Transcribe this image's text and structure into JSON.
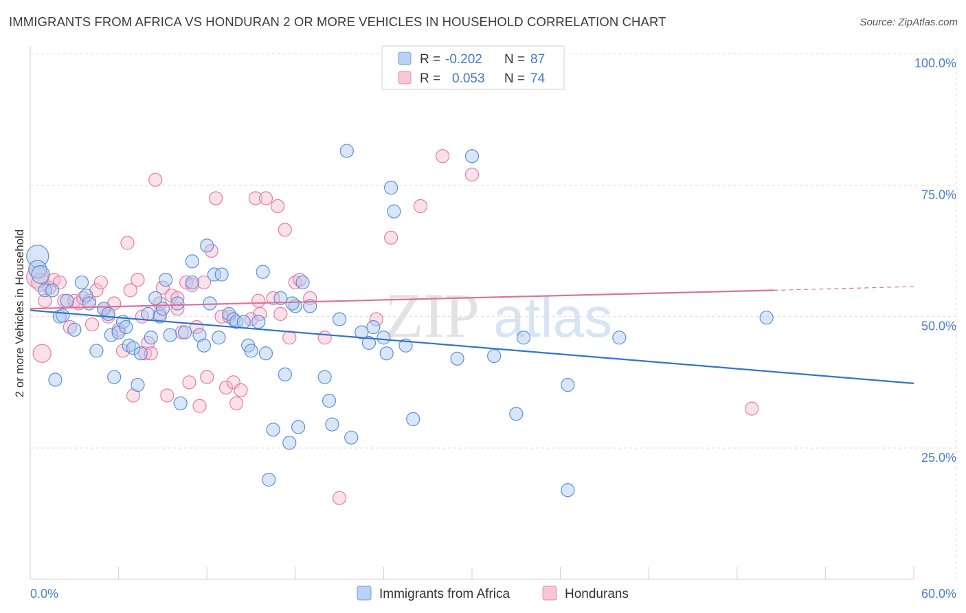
{
  "title": "IMMIGRANTS FROM AFRICA VS HONDURAN 2 OR MORE VEHICLES IN HOUSEHOLD CORRELATION CHART",
  "source": "Source: ZipAtlas.com",
  "watermark": {
    "zip": "ZIP",
    "atlas": "atlas"
  },
  "colors": {
    "blue": "#5b8fd9",
    "blue_fill": "#aac8f0",
    "blue_line": "#2f74d0",
    "pink": "#e87aa0",
    "pink_fill": "#f5bcd0",
    "pink_line": "#e0709a",
    "axis_text_blue": "#4a7fc9"
  },
  "stats": [
    {
      "r_label": "R =",
      "r_value": "-0.202",
      "n_label": "N =",
      "n_value": "87"
    },
    {
      "r_label": "R =",
      "r_value": "0.053",
      "n_label": "N =",
      "n_value": "74"
    }
  ],
  "chart_data": {
    "type": "scatter",
    "title": "IMMIGRANTS FROM AFRICA VS HONDURAN 2 OR MORE VEHICLES IN HOUSEHOLD CORRELATION CHART",
    "xlabel": "",
    "ylabel": "2 or more Vehicles in Household",
    "xlim": [
      0,
      60
    ],
    "ylim": [
      0,
      105
    ],
    "x_tick_labels": [
      "0.0%",
      "60.0%"
    ],
    "y_ticks": [
      25,
      50,
      75,
      100
    ],
    "y_tick_labels": [
      "25.0%",
      "50.0%",
      "75.0%",
      "100.0%"
    ],
    "grid": true,
    "legend_position": "bottom",
    "series": [
      {
        "name": "Immigrants from Africa",
        "trend": {
          "x": [
            0,
            60
          ],
          "y": [
            51.2,
            37.3
          ],
          "dashed_after": null
        },
        "points": [
          [
            0.5,
            61.5
          ],
          [
            0.5,
            59.0
          ],
          [
            0.7,
            58.0
          ],
          [
            1.0,
            55.0
          ],
          [
            1.5,
            55.0
          ],
          [
            1.7,
            38.0
          ],
          [
            2.0,
            50.0
          ],
          [
            2.2,
            50.2
          ],
          [
            2.5,
            53.0
          ],
          [
            3.0,
            47.5
          ],
          [
            3.5,
            56.5
          ],
          [
            3.8,
            54.0
          ],
          [
            4.0,
            52.5
          ],
          [
            4.5,
            43.5
          ],
          [
            5.0,
            51.5
          ],
          [
            5.3,
            50.5
          ],
          [
            5.5,
            46.5
          ],
          [
            5.7,
            38.5
          ],
          [
            6.0,
            47.0
          ],
          [
            6.3,
            49.0
          ],
          [
            6.5,
            48.0
          ],
          [
            6.7,
            44.5
          ],
          [
            7.0,
            44.0
          ],
          [
            7.3,
            37.0
          ],
          [
            7.5,
            43.0
          ],
          [
            8.0,
            50.5
          ],
          [
            8.2,
            46.0
          ],
          [
            8.5,
            53.5
          ],
          [
            8.8,
            50.0
          ],
          [
            9.0,
            51.5
          ],
          [
            9.2,
            57.0
          ],
          [
            9.5,
            46.5
          ],
          [
            10.0,
            52.5
          ],
          [
            10.2,
            33.5
          ],
          [
            10.5,
            47.0
          ],
          [
            11.0,
            56.5
          ],
          [
            11.0,
            60.5
          ],
          [
            11.5,
            46.5
          ],
          [
            11.8,
            44.5
          ],
          [
            12.0,
            63.5
          ],
          [
            12.2,
            52.5
          ],
          [
            12.5,
            58.0
          ],
          [
            12.8,
            46.0
          ],
          [
            13.0,
            58.0
          ],
          [
            13.5,
            50.5
          ],
          [
            13.8,
            49.5
          ],
          [
            14.0,
            49.0
          ],
          [
            14.5,
            49.0
          ],
          [
            14.8,
            44.5
          ],
          [
            15.0,
            43.5
          ],
          [
            15.5,
            49.0
          ],
          [
            15.8,
            58.5
          ],
          [
            16.0,
            43.0
          ],
          [
            16.2,
            19.0
          ],
          [
            16.5,
            28.5
          ],
          [
            17.0,
            53.5
          ],
          [
            17.3,
            39.0
          ],
          [
            17.6,
            26.0
          ],
          [
            18.0,
            52.0
          ],
          [
            18.2,
            29.0
          ],
          [
            18.5,
            56.5
          ],
          [
            19.0,
            52.0
          ],
          [
            20.0,
            38.5
          ],
          [
            20.3,
            34.0
          ],
          [
            20.5,
            29.5
          ],
          [
            21.0,
            49.5
          ],
          [
            21.5,
            81.5
          ],
          [
            21.8,
            27.0
          ],
          [
            22.5,
            47.0
          ],
          [
            23.0,
            45.0
          ],
          [
            23.3,
            48.0
          ],
          [
            24.0,
            46.0
          ],
          [
            24.2,
            43.0
          ],
          [
            24.5,
            74.5
          ],
          [
            24.7,
            70.0
          ],
          [
            25.5,
            44.5
          ],
          [
            26.0,
            30.5
          ],
          [
            29.0,
            42.0
          ],
          [
            30.0,
            80.5
          ],
          [
            31.5,
            42.5
          ],
          [
            33.0,
            31.5
          ],
          [
            33.5,
            46.0
          ],
          [
            36.5,
            37.0
          ],
          [
            36.5,
            17.0
          ],
          [
            40.0,
            46.0
          ],
          [
            50.0,
            49.8
          ],
          [
            17.8,
            52.5
          ]
        ]
      },
      {
        "name": "Hondurans",
        "trend": {
          "x": [
            0,
            50.5
          ],
          "y": [
            51.5,
            55.0
          ],
          "dashed_after": [
            50.5,
            60,
            55.0,
            55.7
          ]
        },
        "points": [
          [
            0.5,
            57.5
          ],
          [
            0.7,
            56.5
          ],
          [
            0.8,
            43.0
          ],
          [
            1.0,
            53.0
          ],
          [
            1.3,
            55.5
          ],
          [
            1.6,
            57.0
          ],
          [
            2.0,
            56.5
          ],
          [
            2.3,
            53.0
          ],
          [
            2.7,
            48.0
          ],
          [
            3.0,
            53.0
          ],
          [
            3.3,
            52.5
          ],
          [
            3.6,
            53.5
          ],
          [
            4.0,
            53.0
          ],
          [
            4.2,
            48.5
          ],
          [
            4.5,
            55.0
          ],
          [
            4.8,
            56.5
          ],
          [
            5.0,
            51.5
          ],
          [
            5.3,
            50.0
          ],
          [
            5.7,
            52.5
          ],
          [
            6.0,
            47.5
          ],
          [
            6.3,
            43.5
          ],
          [
            6.6,
            64.0
          ],
          [
            6.8,
            55.0
          ],
          [
            7.0,
            35.0
          ],
          [
            7.3,
            57.0
          ],
          [
            7.6,
            50.0
          ],
          [
            7.8,
            43.0
          ],
          [
            8.0,
            45.0
          ],
          [
            8.2,
            43.0
          ],
          [
            8.5,
            76.0
          ],
          [
            8.8,
            52.5
          ],
          [
            9.0,
            55.5
          ],
          [
            9.3,
            35.0
          ],
          [
            9.6,
            54.0
          ],
          [
            10.0,
            51.5
          ],
          [
            10.3,
            47.0
          ],
          [
            10.6,
            56.5
          ],
          [
            10.8,
            37.5
          ],
          [
            11.0,
            56.0
          ],
          [
            11.3,
            48.0
          ],
          [
            11.5,
            33.0
          ],
          [
            11.8,
            56.5
          ],
          [
            12.0,
            38.5
          ],
          [
            12.3,
            62.5
          ],
          [
            12.6,
            72.5
          ],
          [
            13.0,
            50.0
          ],
          [
            13.3,
            36.5
          ],
          [
            13.5,
            50.0
          ],
          [
            13.8,
            37.5
          ],
          [
            14.0,
            33.5
          ],
          [
            14.3,
            36.0
          ],
          [
            15.0,
            49.5
          ],
          [
            15.3,
            72.5
          ],
          [
            15.6,
            50.5
          ],
          [
            16.0,
            72.5
          ],
          [
            16.5,
            53.5
          ],
          [
            16.8,
            71.0
          ],
          [
            17.0,
            50.5
          ],
          [
            17.3,
            66.5
          ],
          [
            17.6,
            46.0
          ],
          [
            18.0,
            56.5
          ],
          [
            18.3,
            57.0
          ],
          [
            19.0,
            53.5
          ],
          [
            20.0,
            46.0
          ],
          [
            21.0,
            15.5
          ],
          [
            23.5,
            49.5
          ],
          [
            24.5,
            65.0
          ],
          [
            26.5,
            71.0
          ],
          [
            28.0,
            80.5
          ],
          [
            30.0,
            77.0
          ],
          [
            49.0,
            32.5
          ],
          [
            10.0,
            53.5
          ],
          [
            8.8,
            50.5
          ],
          [
            15.5,
            53.0
          ]
        ]
      }
    ]
  }
}
